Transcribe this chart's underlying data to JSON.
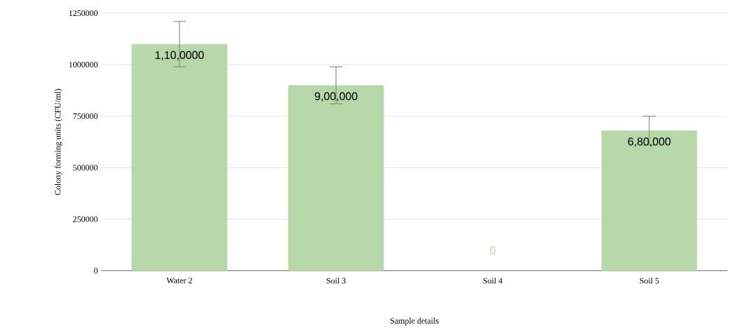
{
  "chart_data": {
    "type": "bar",
    "xlabel": "Sample details",
    "ylabel": "Colony forming units (CFU/ml)",
    "categories": [
      "Water 2",
      "Soil 3",
      "Soil 4",
      "Soil 5"
    ],
    "values": [
      1100000,
      900000,
      0,
      680000
    ],
    "errors": [
      110000,
      90000,
      null,
      70000
    ],
    "value_labels": [
      "1,10,0000",
      "9,00,000",
      "0",
      "6,80,000"
    ],
    "color": "#b6d7a8",
    "ylim": [
      0,
      1250000
    ],
    "yticks": [
      0,
      250000,
      500000,
      750000,
      1000000,
      1250000
    ],
    "grid": "y"
  }
}
